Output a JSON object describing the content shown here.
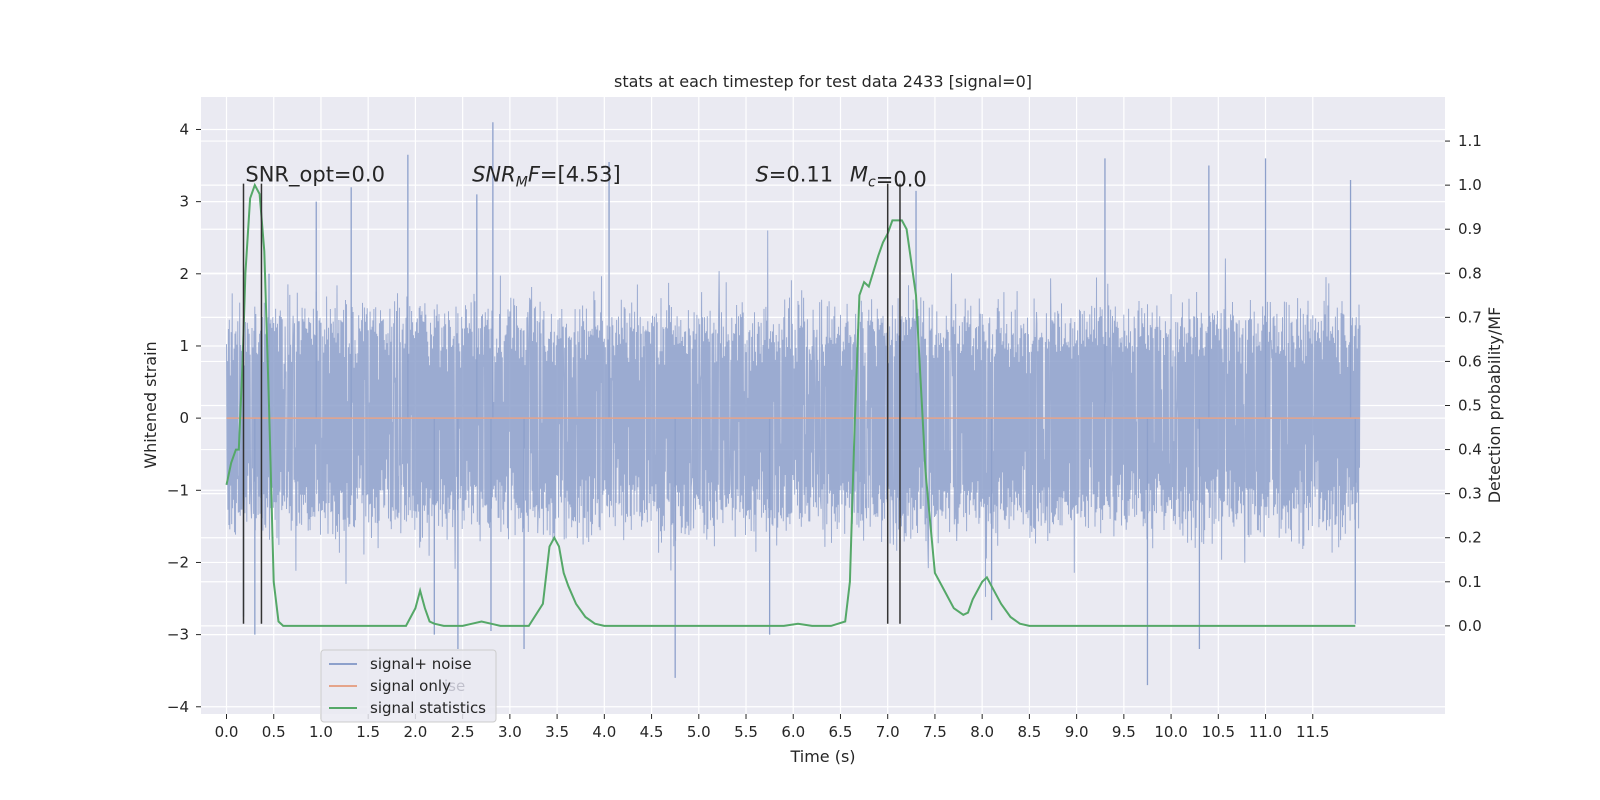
{
  "chart_data": {
    "type": "line",
    "title": "stats at each timestep for test data 2433 [signal=0]",
    "xlabel": "Time (s)",
    "ylabel_left": "Whitened strain",
    "ylabel_right": "Detection probability/MF",
    "xlim": [
      -0.27,
      12.9
    ],
    "ylim_left": [
      -4.1,
      4.45
    ],
    "ylim_right": [
      -0.2,
      1.2
    ],
    "x_ticks": [
      0.0,
      0.5,
      1.0,
      1.5,
      2.0,
      2.5,
      3.0,
      3.5,
      4.0,
      4.5,
      5.0,
      5.5,
      6.0,
      6.5,
      7.0,
      7.5,
      8.0,
      8.5,
      9.0,
      9.5,
      10.0,
      10.5,
      11.0,
      11.5
    ],
    "x_tick_labels": [
      "0.0",
      "0.5",
      "1.0",
      "1.5",
      "2.0",
      "2.5",
      "3.0",
      "3.5",
      "4.0",
      "4.5",
      "5.0",
      "5.5",
      "6.0",
      "6.5",
      "7.0",
      "7.5",
      "8.0",
      "8.5",
      "9.0",
      "9.5",
      "10.0",
      "10.5",
      "11.0",
      "11.5"
    ],
    "y_left_ticks": [
      -4,
      -3,
      -2,
      -1,
      0,
      1,
      2,
      3,
      4
    ],
    "y_left_tick_labels": [
      "−4",
      "−3",
      "−2",
      "−1",
      "0",
      "1",
      "2",
      "3",
      "4"
    ],
    "y_right_ticks": [
      0.0,
      0.1,
      0.2,
      0.3,
      0.4,
      0.5,
      0.6,
      0.7,
      0.8,
      0.9,
      1.0,
      1.1
    ],
    "y_right_tick_labels": [
      "0.0",
      "0.1",
      "0.2",
      "0.3",
      "0.4",
      "0.5",
      "0.6",
      "0.7",
      "0.8",
      "0.9",
      "1.0",
      "1.1"
    ],
    "grid": true,
    "legend_position": "lower-left",
    "series": [
      {
        "name": "signal+ noise",
        "axis": "left",
        "color": "#8da0cb",
        "time_range": [
          0.0,
          12.0
        ],
        "core_amplitude": 1.4,
        "peaks": [
          {
            "x": 0.18,
            "y": -2.75
          },
          {
            "x": 0.3,
            "y": -3.0
          },
          {
            "x": 0.45,
            "y": 2.0
          },
          {
            "x": 0.95,
            "y": 3.0
          },
          {
            "x": 1.32,
            "y": 3.2
          },
          {
            "x": 1.92,
            "y": 3.65
          },
          {
            "x": 2.2,
            "y": -3.0
          },
          {
            "x": 2.45,
            "y": -3.2
          },
          {
            "x": 2.65,
            "y": 3.1
          },
          {
            "x": 2.82,
            "y": 4.1
          },
          {
            "x": 2.8,
            "y": -2.95
          },
          {
            "x": 3.15,
            "y": -3.2
          },
          {
            "x": 4.05,
            "y": 3.55
          },
          {
            "x": 4.75,
            "y": -3.6
          },
          {
            "x": 5.75,
            "y": -3.0
          },
          {
            "x": 7.3,
            "y": 3.15
          },
          {
            "x": 9.3,
            "y": 3.6
          },
          {
            "x": 9.75,
            "y": -3.7
          },
          {
            "x": 10.3,
            "y": -3.2
          },
          {
            "x": 10.4,
            "y": 3.5
          },
          {
            "x": 11.0,
            "y": 3.6
          },
          {
            "x": 11.9,
            "y": 3.3
          },
          {
            "x": 11.95,
            "y": -2.85
          },
          {
            "x": 8.1,
            "y": -2.8
          }
        ]
      },
      {
        "name": "signal only",
        "axis": "left",
        "color": "#e5a48a",
        "x": [
          0.0,
          12.0
        ],
        "y": [
          0.0,
          0.0
        ]
      },
      {
        "name": "signal statistics",
        "axis": "right",
        "color": "#55a868",
        "x": [
          0.0,
          0.05,
          0.1,
          0.13,
          0.17,
          0.2,
          0.25,
          0.3,
          0.35,
          0.4,
          0.45,
          0.5,
          0.55,
          0.6,
          0.7,
          1.0,
          1.5,
          1.9,
          2.0,
          2.05,
          2.1,
          2.15,
          2.2,
          2.3,
          2.5,
          2.6,
          2.7,
          2.8,
          2.9,
          3.0,
          3.2,
          3.35,
          3.42,
          3.47,
          3.52,
          3.57,
          3.62,
          3.7,
          3.8,
          3.9,
          4.0,
          4.5,
          5.0,
          5.5,
          5.9,
          6.05,
          6.2,
          6.4,
          6.55,
          6.6,
          6.65,
          6.7,
          6.75,
          6.8,
          6.9,
          6.95,
          7.0,
          7.05,
          7.1,
          7.15,
          7.2,
          7.3,
          7.4,
          7.5,
          7.55,
          7.6,
          7.7,
          7.8,
          7.85,
          7.9,
          8.0,
          8.05,
          8.1,
          8.2,
          8.3,
          8.4,
          8.5,
          9.0,
          10.0,
          11.0,
          11.8,
          11.95
        ],
        "y": [
          0.32,
          0.37,
          0.4,
          0.4,
          0.6,
          0.8,
          0.97,
          1.0,
          0.98,
          0.85,
          0.5,
          0.1,
          0.01,
          0.0,
          0.0,
          0.0,
          0.0,
          0.0,
          0.04,
          0.08,
          0.04,
          0.01,
          0.005,
          0.0,
          0.0,
          0.005,
          0.01,
          0.005,
          0.0,
          0.0,
          0.0,
          0.05,
          0.18,
          0.2,
          0.18,
          0.12,
          0.09,
          0.05,
          0.02,
          0.005,
          0.0,
          0.0,
          0.0,
          0.0,
          0.0,
          0.005,
          0.0,
          0.0,
          0.01,
          0.1,
          0.45,
          0.75,
          0.78,
          0.77,
          0.84,
          0.87,
          0.89,
          0.92,
          0.92,
          0.92,
          0.9,
          0.75,
          0.35,
          0.12,
          0.1,
          0.08,
          0.04,
          0.025,
          0.03,
          0.06,
          0.1,
          0.11,
          0.09,
          0.05,
          0.02,
          0.005,
          0.0,
          0.0,
          0.0,
          0.0,
          0.0,
          0.0
        ]
      }
    ],
    "vertical_markers": {
      "color": "#333333",
      "x": [
        0.18,
        0.37,
        7.0,
        7.13
      ],
      "y_top": 3.25,
      "y_bottom": -2.85
    },
    "annotations": [
      {
        "text": "SNR_opt=0.0",
        "x": 0.2,
        "y": 3.25,
        "italic": false
      },
      {
        "text": "SNR_MF=[4.53]",
        "x": 2.6,
        "y": 3.25,
        "italic": true
      },
      {
        "text": "S=0.11",
        "x": 5.6,
        "y": 3.25,
        "italic": true
      },
      {
        "text": "M_c=0.0",
        "x": 6.6,
        "y": 3.25,
        "italic": true
      }
    ],
    "legend_overlap_text": "ise"
  },
  "colors": {
    "background": "#eaeaf2",
    "grid": "#ffffff",
    "text": "#262626"
  }
}
